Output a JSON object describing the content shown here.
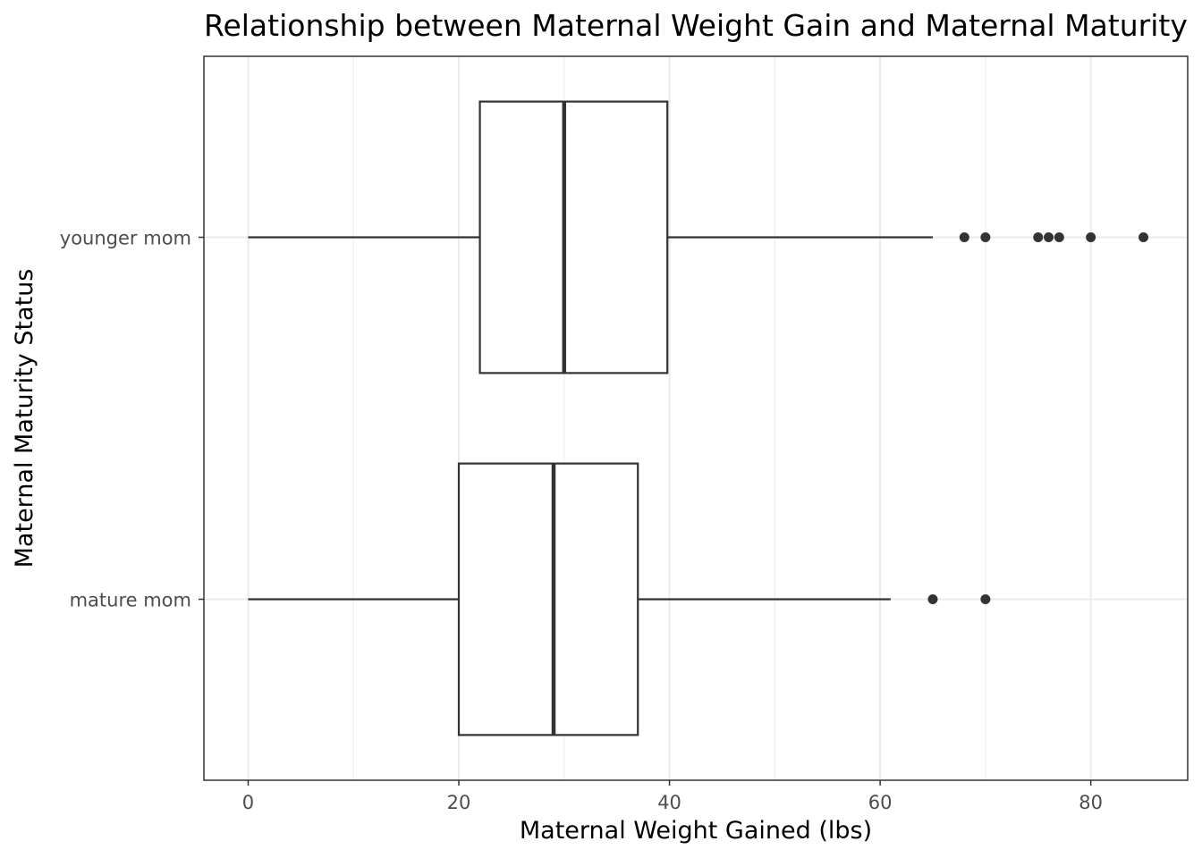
{
  "chart_data": {
    "type": "boxplot",
    "orientation": "horizontal",
    "title": "Relationship between Maternal Weight Gain and Maternal Maturity",
    "xlabel": "Maternal Weight Gained (lbs)",
    "ylabel": "Maternal Maturity Status",
    "xlim": [
      -4.2,
      89.2
    ],
    "x_ticks": [
      0,
      20,
      40,
      60,
      80
    ],
    "x_minor_ticks": [
      10,
      30,
      50,
      70
    ],
    "grid": true,
    "categories": [
      "mature mom",
      "younger mom"
    ],
    "boxes": [
      {
        "category": "mature mom",
        "whisker_low": 0,
        "q1": 20,
        "median": 29,
        "q3": 37,
        "whisker_high": 61,
        "outliers": [
          65,
          70
        ]
      },
      {
        "category": "younger mom",
        "whisker_low": 0,
        "q1": 22,
        "median": 30,
        "q3": 39.8,
        "whisker_high": 65,
        "outliers": [
          68,
          70,
          75,
          76,
          77,
          80,
          85
        ]
      }
    ],
    "colors": {
      "box_line": "#333333",
      "grid": "#ebebeb",
      "panel_border": "#333333"
    }
  }
}
